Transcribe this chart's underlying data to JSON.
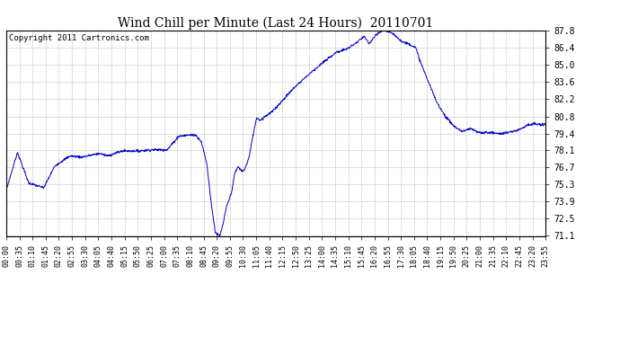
{
  "title": "Wind Chill per Minute (Last 24 Hours)  20110701",
  "copyright": "Copyright 2011 Cartronics.com",
  "line_color": "#0000cc",
  "bg_color": "#ffffff",
  "plot_bg_color": "#ffffff",
  "grid_color": "#b0b0b0",
  "yticks": [
    71.1,
    72.5,
    73.9,
    75.3,
    76.7,
    78.1,
    79.4,
    80.8,
    82.2,
    83.6,
    85.0,
    86.4,
    87.8
  ],
  "ymin": 71.1,
  "ymax": 87.8,
  "xtick_labels": [
    "00:00",
    "00:35",
    "01:10",
    "01:45",
    "02:20",
    "02:55",
    "03:30",
    "04:05",
    "04:40",
    "05:15",
    "05:50",
    "06:25",
    "07:00",
    "07:35",
    "08:10",
    "08:45",
    "09:20",
    "09:55",
    "10:30",
    "11:05",
    "11:40",
    "12:15",
    "12:50",
    "13:25",
    "14:00",
    "14:35",
    "15:10",
    "15:45",
    "16:20",
    "16:55",
    "17:30",
    "18:05",
    "18:40",
    "19:15",
    "19:50",
    "20:25",
    "21:00",
    "21:35",
    "22:10",
    "22:45",
    "23:20",
    "23:55"
  ],
  "keypoints": [
    [
      0,
      74.8
    ],
    [
      30,
      77.9
    ],
    [
      60,
      75.4
    ],
    [
      100,
      75.0
    ],
    [
      130,
      76.8
    ],
    [
      170,
      77.6
    ],
    [
      200,
      77.5
    ],
    [
      250,
      77.8
    ],
    [
      270,
      77.6
    ],
    [
      310,
      78.0
    ],
    [
      350,
      78.0
    ],
    [
      390,
      78.1
    ],
    [
      430,
      78.1
    ],
    [
      460,
      79.2
    ],
    [
      490,
      79.3
    ],
    [
      505,
      79.3
    ],
    [
      520,
      78.8
    ],
    [
      535,
      77.0
    ],
    [
      548,
      73.5
    ],
    [
      558,
      71.4
    ],
    [
      565,
      71.15
    ],
    [
      570,
      71.1
    ],
    [
      578,
      72.0
    ],
    [
      588,
      73.5
    ],
    [
      600,
      74.5
    ],
    [
      610,
      76.2
    ],
    [
      618,
      76.7
    ],
    [
      625,
      76.5
    ],
    [
      632,
      76.3
    ],
    [
      640,
      76.8
    ],
    [
      648,
      77.5
    ],
    [
      658,
      79.2
    ],
    [
      668,
      80.7
    ],
    [
      678,
      80.5
    ],
    [
      690,
      80.8
    ],
    [
      710,
      81.2
    ],
    [
      740,
      82.2
    ],
    [
      770,
      83.2
    ],
    [
      810,
      84.3
    ],
    [
      850,
      85.3
    ],
    [
      880,
      86.0
    ],
    [
      910,
      86.3
    ],
    [
      935,
      86.8
    ],
    [
      955,
      87.3
    ],
    [
      968,
      86.7
    ],
    [
      978,
      87.1
    ],
    [
      990,
      87.5
    ],
    [
      1000,
      87.7
    ],
    [
      1010,
      87.8
    ],
    [
      1022,
      87.7
    ],
    [
      1030,
      87.5
    ],
    [
      1042,
      87.3
    ],
    [
      1055,
      86.9
    ],
    [
      1075,
      86.7
    ],
    [
      1092,
      86.4
    ],
    [
      1108,
      85.0
    ],
    [
      1128,
      83.5
    ],
    [
      1148,
      82.0
    ],
    [
      1172,
      80.8
    ],
    [
      1195,
      80.0
    ],
    [
      1215,
      79.6
    ],
    [
      1240,
      79.8
    ],
    [
      1260,
      79.5
    ],
    [
      1290,
      79.5
    ],
    [
      1315,
      79.4
    ],
    [
      1340,
      79.5
    ],
    [
      1365,
      79.7
    ],
    [
      1390,
      80.1
    ],
    [
      1410,
      80.2
    ],
    [
      1430,
      80.1
    ],
    [
      1439,
      80.2
    ]
  ]
}
